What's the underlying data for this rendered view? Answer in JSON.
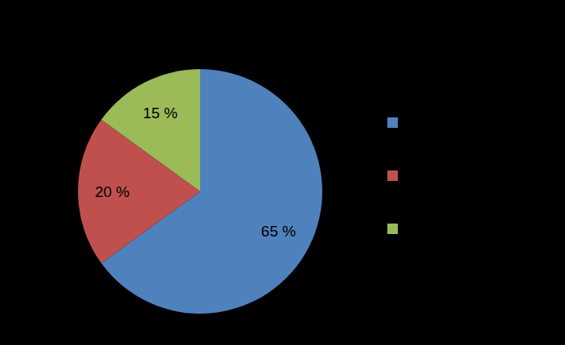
{
  "chart_data": {
    "type": "pie",
    "categories": [
      null,
      null,
      null
    ],
    "values": [
      65,
      20,
      15
    ],
    "value_labels": [
      "65 %",
      "20 %",
      "15 %"
    ],
    "colors": [
      "#4f81bd",
      "#c0504d",
      "#9bbb59"
    ],
    "data_labels": true,
    "legend": "right"
  }
}
